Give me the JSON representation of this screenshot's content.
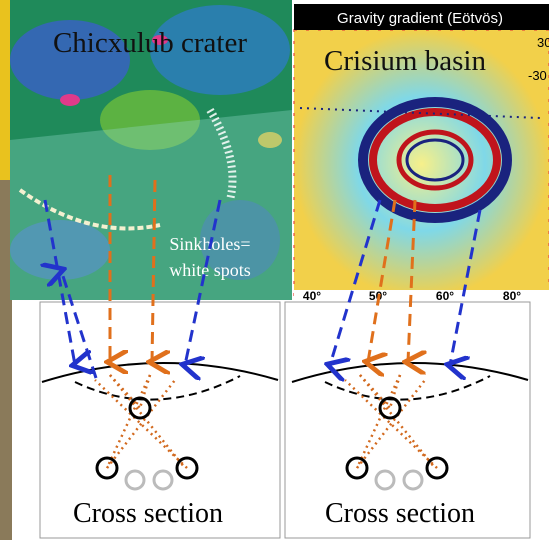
{
  "left_panel": {
    "title": "Chicxulub crater",
    "annotation": [
      "Sinkholes=",
      "white spots"
    ],
    "caption": "Cross section"
  },
  "right_panel": {
    "title": "Crisium basin",
    "colorbar_title": "Gravity gradient (Eötvös)",
    "colorbar_ticks": [
      "30",
      "-30"
    ],
    "longitude_labels": [
      "40°",
      "50°",
      "60°",
      "80°"
    ],
    "caption": "Cross section"
  }
}
